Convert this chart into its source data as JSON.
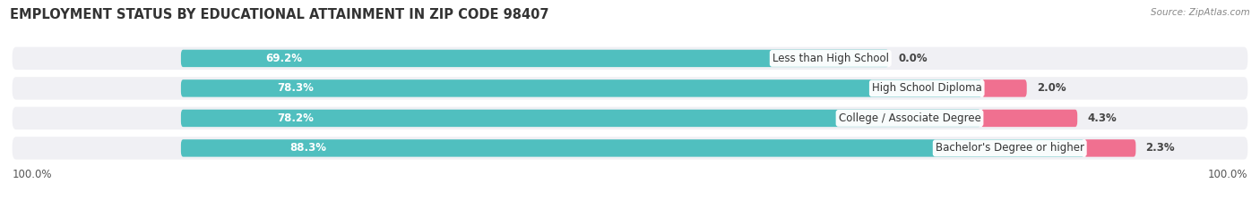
{
  "title": "EMPLOYMENT STATUS BY EDUCATIONAL ATTAINMENT IN ZIP CODE 98407",
  "source": "Source: ZipAtlas.com",
  "categories": [
    "Less than High School",
    "High School Diploma",
    "College / Associate Degree",
    "Bachelor's Degree or higher"
  ],
  "labor_force": [
    69.2,
    78.3,
    78.2,
    88.3
  ],
  "unemployed": [
    0.0,
    2.0,
    4.3,
    2.3
  ],
  "labor_force_color": "#50BFBF",
  "unemployed_color": "#F07090",
  "bar_bg_color": "#E4E4E8",
  "row_bg_color": "#F0F0F4",
  "bar_height": 0.58,
  "title_fontsize": 10.5,
  "source_fontsize": 7.5,
  "label_fontsize": 8.5,
  "pct_fontsize": 8.5,
  "tick_fontsize": 8.5,
  "legend_fontsize": 8.5,
  "left_label": "100.0%",
  "right_label": "100.0%"
}
